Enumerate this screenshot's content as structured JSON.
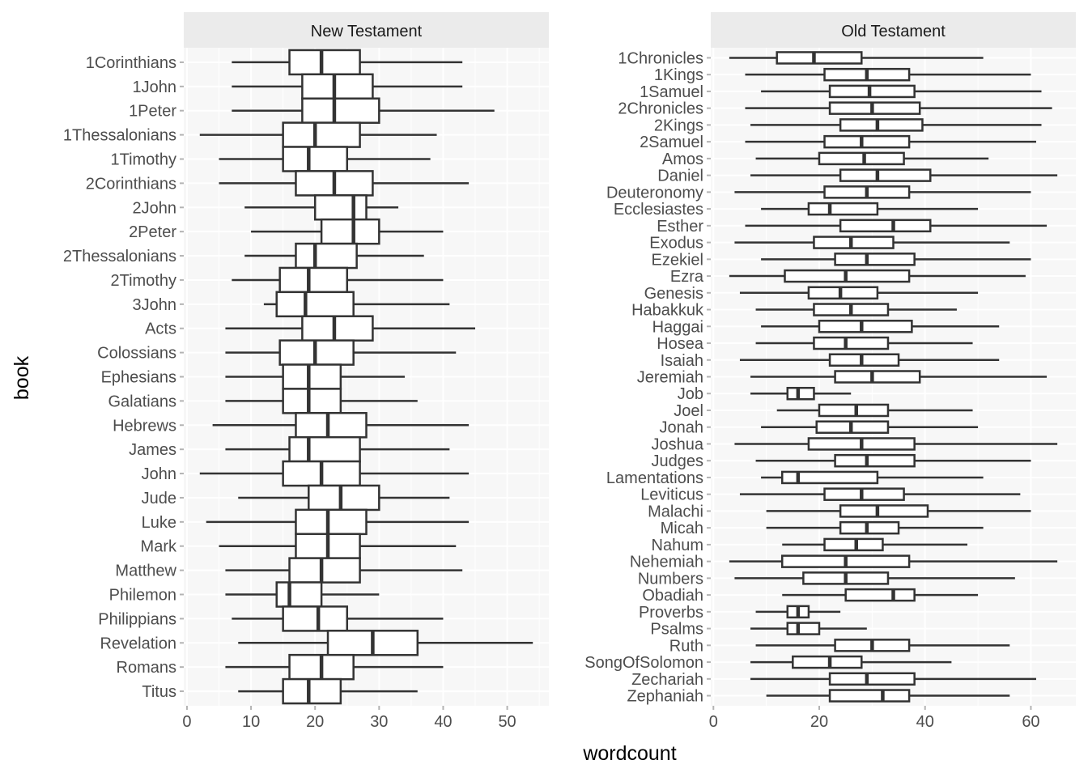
{
  "chart_data": {
    "type": "boxplot",
    "orientation": "horizontal",
    "xlabel": "wordcount",
    "ylabel": "book",
    "colors": {
      "panel_background": "#f7f7f7",
      "strip_background": "#ebebeb",
      "grid_major": "#ffffff",
      "box_stroke": "#333333",
      "box_fill": "#ffffff",
      "tick_label": "#4d4d4d"
    },
    "panels": [
      {
        "title": "New Testament",
        "xlim": [
          -0.5,
          56.5
        ],
        "xticks": [
          0,
          10,
          20,
          30,
          40,
          50
        ],
        "categories": [
          "1Corinthians",
          "1John",
          "1Peter",
          "1Thessalonians",
          "1Timothy",
          "2Corinthians",
          "2John",
          "2Peter",
          "2Thessalonians",
          "2Timothy",
          "3John",
          "Acts",
          "Colossians",
          "Ephesians",
          "Galatians",
          "Hebrews",
          "James",
          "John",
          "Jude",
          "Luke",
          "Mark",
          "Matthew",
          "Philemon",
          "Philippians",
          "Revelation",
          "Romans",
          "Titus"
        ],
        "boxes": [
          {
            "min": 7,
            "q1": 16,
            "median": 21,
            "q3": 27,
            "max": 43
          },
          {
            "min": 7,
            "q1": 18,
            "median": 23,
            "q3": 29,
            "max": 43
          },
          {
            "min": 7,
            "q1": 18,
            "median": 23,
            "q3": 30,
            "max": 48
          },
          {
            "min": 2,
            "q1": 15,
            "median": 20,
            "q3": 27,
            "max": 39
          },
          {
            "min": 5,
            "q1": 15,
            "median": 19,
            "q3": 25,
            "max": 38
          },
          {
            "min": 5,
            "q1": 17,
            "median": 23,
            "q3": 29,
            "max": 44
          },
          {
            "min": 9,
            "q1": 20,
            "median": 26,
            "q3": 28,
            "max": 33
          },
          {
            "min": 10,
            "q1": 21,
            "median": 26,
            "q3": 30,
            "max": 40
          },
          {
            "min": 9,
            "q1": 17,
            "median": 20,
            "q3": 26.5,
            "max": 37
          },
          {
            "min": 7,
            "q1": 14.5,
            "median": 19,
            "q3": 25,
            "max": 40
          },
          {
            "min": 12,
            "q1": 14,
            "median": 18.5,
            "q3": 26,
            "max": 41
          },
          {
            "min": 6,
            "q1": 18,
            "median": 23,
            "q3": 29,
            "max": 45
          },
          {
            "min": 6,
            "q1": 14.5,
            "median": 20,
            "q3": 26,
            "max": 42
          },
          {
            "min": 6,
            "q1": 15,
            "median": 19,
            "q3": 24,
            "max": 34
          },
          {
            "min": 6,
            "q1": 15,
            "median": 19,
            "q3": 24,
            "max": 36
          },
          {
            "min": 4,
            "q1": 17,
            "median": 22,
            "q3": 28,
            "max": 44
          },
          {
            "min": 6,
            "q1": 16,
            "median": 19,
            "q3": 27,
            "max": 41
          },
          {
            "min": 2,
            "q1": 15,
            "median": 21,
            "q3": 27,
            "max": 44
          },
          {
            "min": 8,
            "q1": 19,
            "median": 24,
            "q3": 30,
            "max": 41
          },
          {
            "min": 3,
            "q1": 17,
            "median": 22,
            "q3": 28,
            "max": 44
          },
          {
            "min": 5,
            "q1": 17,
            "median": 22,
            "q3": 27,
            "max": 42
          },
          {
            "min": 6,
            "q1": 16,
            "median": 21,
            "q3": 27,
            "max": 43
          },
          {
            "min": 6,
            "q1": 14,
            "median": 16,
            "q3": 21,
            "max": 30
          },
          {
            "min": 7,
            "q1": 15,
            "median": 20.5,
            "q3": 25,
            "max": 40
          },
          {
            "min": 8,
            "q1": 22,
            "median": 29,
            "q3": 36,
            "max": 54
          },
          {
            "min": 6,
            "q1": 16,
            "median": 21,
            "q3": 26,
            "max": 40
          },
          {
            "min": 8,
            "q1": 15,
            "median": 19,
            "q3": 24,
            "max": 36
          }
        ]
      },
      {
        "title": "Old Testament",
        "xlim": [
          -0.5,
          68.5
        ],
        "xticks": [
          0,
          20,
          40,
          60
        ],
        "categories": [
          "1Chronicles",
          "1Kings",
          "1Samuel",
          "2Chronicles",
          "2Kings",
          "2Samuel",
          "Amos",
          "Daniel",
          "Deuteronomy",
          "Ecclesiastes",
          "Esther",
          "Exodus",
          "Ezekiel",
          "Ezra",
          "Genesis",
          "Habakkuk",
          "Haggai",
          "Hosea",
          "Isaiah",
          "Jeremiah",
          "Job",
          "Joel",
          "Jonah",
          "Joshua",
          "Judges",
          "Lamentations",
          "Leviticus",
          "Malachi",
          "Micah",
          "Nahum",
          "Nehemiah",
          "Numbers",
          "Obadiah",
          "Proverbs",
          "Psalms",
          "Ruth",
          "SongOfSolomon",
          "Zechariah",
          "Zephaniah"
        ],
        "boxes": [
          {
            "min": 3,
            "q1": 12,
            "median": 19,
            "q3": 28,
            "max": 51
          },
          {
            "min": 6,
            "q1": 21,
            "median": 29,
            "q3": 37,
            "max": 60
          },
          {
            "min": 9,
            "q1": 22,
            "median": 29.5,
            "q3": 38,
            "max": 62
          },
          {
            "min": 6,
            "q1": 22,
            "median": 30,
            "q3": 39,
            "max": 64
          },
          {
            "min": 7,
            "q1": 24,
            "median": 31,
            "q3": 39.5,
            "max": 62
          },
          {
            "min": 6,
            "q1": 21,
            "median": 28,
            "q3": 37,
            "max": 61
          },
          {
            "min": 8,
            "q1": 20,
            "median": 28.5,
            "q3": 36,
            "max": 52
          },
          {
            "min": 7,
            "q1": 24,
            "median": 31,
            "q3": 41,
            "max": 65
          },
          {
            "min": 4,
            "q1": 21,
            "median": 29,
            "q3": 37,
            "max": 60
          },
          {
            "min": 9,
            "q1": 18,
            "median": 22,
            "q3": 31,
            "max": 50
          },
          {
            "min": 6,
            "q1": 24,
            "median": 34,
            "q3": 41,
            "max": 63
          },
          {
            "min": 4,
            "q1": 19,
            "median": 26,
            "q3": 34,
            "max": 56
          },
          {
            "min": 9,
            "q1": 23,
            "median": 29,
            "q3": 38,
            "max": 60
          },
          {
            "min": 3,
            "q1": 13.5,
            "median": 25,
            "q3": 37,
            "max": 59
          },
          {
            "min": 5,
            "q1": 18,
            "median": 24,
            "q3": 31,
            "max": 50
          },
          {
            "min": 8,
            "q1": 19,
            "median": 26,
            "q3": 33,
            "max": 46
          },
          {
            "min": 9,
            "q1": 20,
            "median": 28,
            "q3": 37.5,
            "max": 54
          },
          {
            "min": 8,
            "q1": 19,
            "median": 25,
            "q3": 33,
            "max": 49
          },
          {
            "min": 5,
            "q1": 22,
            "median": 28,
            "q3": 35,
            "max": 54
          },
          {
            "min": 7,
            "q1": 23,
            "median": 30,
            "q3": 39,
            "max": 63
          },
          {
            "min": 7,
            "q1": 14,
            "median": 16,
            "q3": 19,
            "max": 26
          },
          {
            "min": 12,
            "q1": 20,
            "median": 27,
            "q3": 33,
            "max": 49
          },
          {
            "min": 9,
            "q1": 19.5,
            "median": 26,
            "q3": 33,
            "max": 50
          },
          {
            "min": 4,
            "q1": 18,
            "median": 28,
            "q3": 38,
            "max": 65
          },
          {
            "min": 8,
            "q1": 23,
            "median": 29,
            "q3": 38,
            "max": 60
          },
          {
            "min": 9,
            "q1": 13,
            "median": 16,
            "q3": 31,
            "max": 51
          },
          {
            "min": 5,
            "q1": 21,
            "median": 28,
            "q3": 36,
            "max": 58
          },
          {
            "min": 10,
            "q1": 24,
            "median": 31,
            "q3": 40.5,
            "max": 60
          },
          {
            "min": 10,
            "q1": 24,
            "median": 29,
            "q3": 35,
            "max": 51
          },
          {
            "min": 13,
            "q1": 21,
            "median": 27,
            "q3": 32,
            "max": 48
          },
          {
            "min": 3,
            "q1": 13,
            "median": 25,
            "q3": 37,
            "max": 65
          },
          {
            "min": 4,
            "q1": 17,
            "median": 25,
            "q3": 33,
            "max": 57
          },
          {
            "min": 13,
            "q1": 25,
            "median": 34,
            "q3": 38,
            "max": 50
          },
          {
            "min": 8,
            "q1": 14,
            "median": 16,
            "q3": 18,
            "max": 24
          },
          {
            "min": 7,
            "q1": 14,
            "median": 16,
            "q3": 20,
            "max": 29
          },
          {
            "min": 8,
            "q1": 23,
            "median": 30,
            "q3": 37,
            "max": 56
          },
          {
            "min": 7,
            "q1": 15,
            "median": 22,
            "q3": 28,
            "max": 45
          },
          {
            "min": 7,
            "q1": 22,
            "median": 29,
            "q3": 38,
            "max": 61
          },
          {
            "min": 10,
            "q1": 22,
            "median": 32,
            "q3": 37,
            "max": 56
          }
        ]
      }
    ]
  }
}
